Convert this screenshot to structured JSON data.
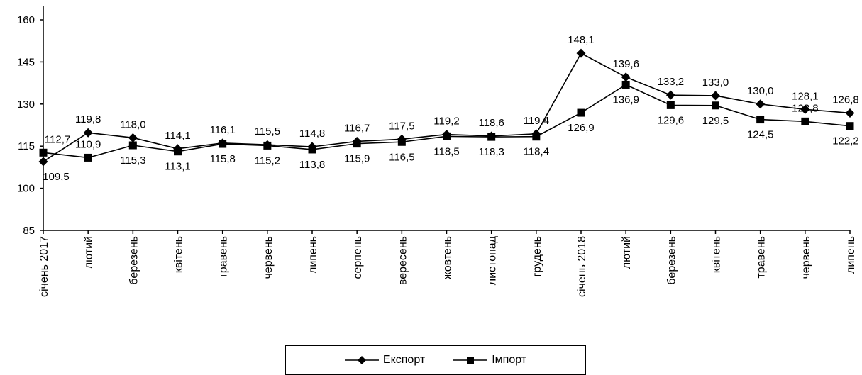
{
  "chart_data": {
    "type": "line",
    "categories": [
      "січень 2017",
      "лютий",
      "березень",
      "квітень",
      "травень",
      "червень",
      "липень",
      "серпень",
      "вересень",
      "жовтень",
      "листопад",
      "грудень",
      "січень 2018",
      "лютий",
      "березень",
      "квітень",
      "травень",
      "червень",
      "липень"
    ],
    "series": [
      {
        "name": "Експорт",
        "marker": "diamond",
        "values": [
          109.5,
          119.8,
          118.0,
          114.1,
          116.1,
          115.5,
          114.8,
          116.7,
          117.5,
          119.2,
          118.6,
          119.4,
          148.1,
          139.6,
          133.2,
          133.0,
          130.0,
          128.1,
          126.8
        ],
        "labels": [
          "109,5",
          "119,8",
          "118,0",
          "114,1",
          "116,1",
          "115,5",
          "114,8",
          "116,7",
          "117,5",
          "119,2",
          "118,6",
          "119,4",
          "148,1",
          "139,6",
          "133,2",
          "133,0",
          "130,0",
          "128,1",
          "126,8"
        ]
      },
      {
        "name": "Імпорт",
        "marker": "square",
        "values": [
          112.7,
          110.9,
          115.3,
          113.1,
          115.8,
          115.2,
          113.8,
          115.9,
          116.5,
          118.5,
          118.3,
          118.4,
          126.9,
          136.9,
          129.6,
          129.5,
          124.5,
          123.8,
          122.2
        ],
        "labels": [
          "112,7",
          "110,9",
          "115,3",
          "113,1",
          "115,8",
          "115,2",
          "113,8",
          "115,9",
          "116,5",
          "118,5",
          "118,3",
          "118,4",
          "126,9",
          "136,9",
          "129,6",
          "129,5",
          "124,5",
          "123,8",
          "122,2"
        ]
      }
    ],
    "ylim": [
      85,
      160
    ],
    "yticks": [
      85,
      100,
      115,
      130,
      145,
      160
    ],
    "grid": false,
    "legend": "bottom",
    "colors": {
      "line": "#000000",
      "background": "#ffffff"
    }
  }
}
